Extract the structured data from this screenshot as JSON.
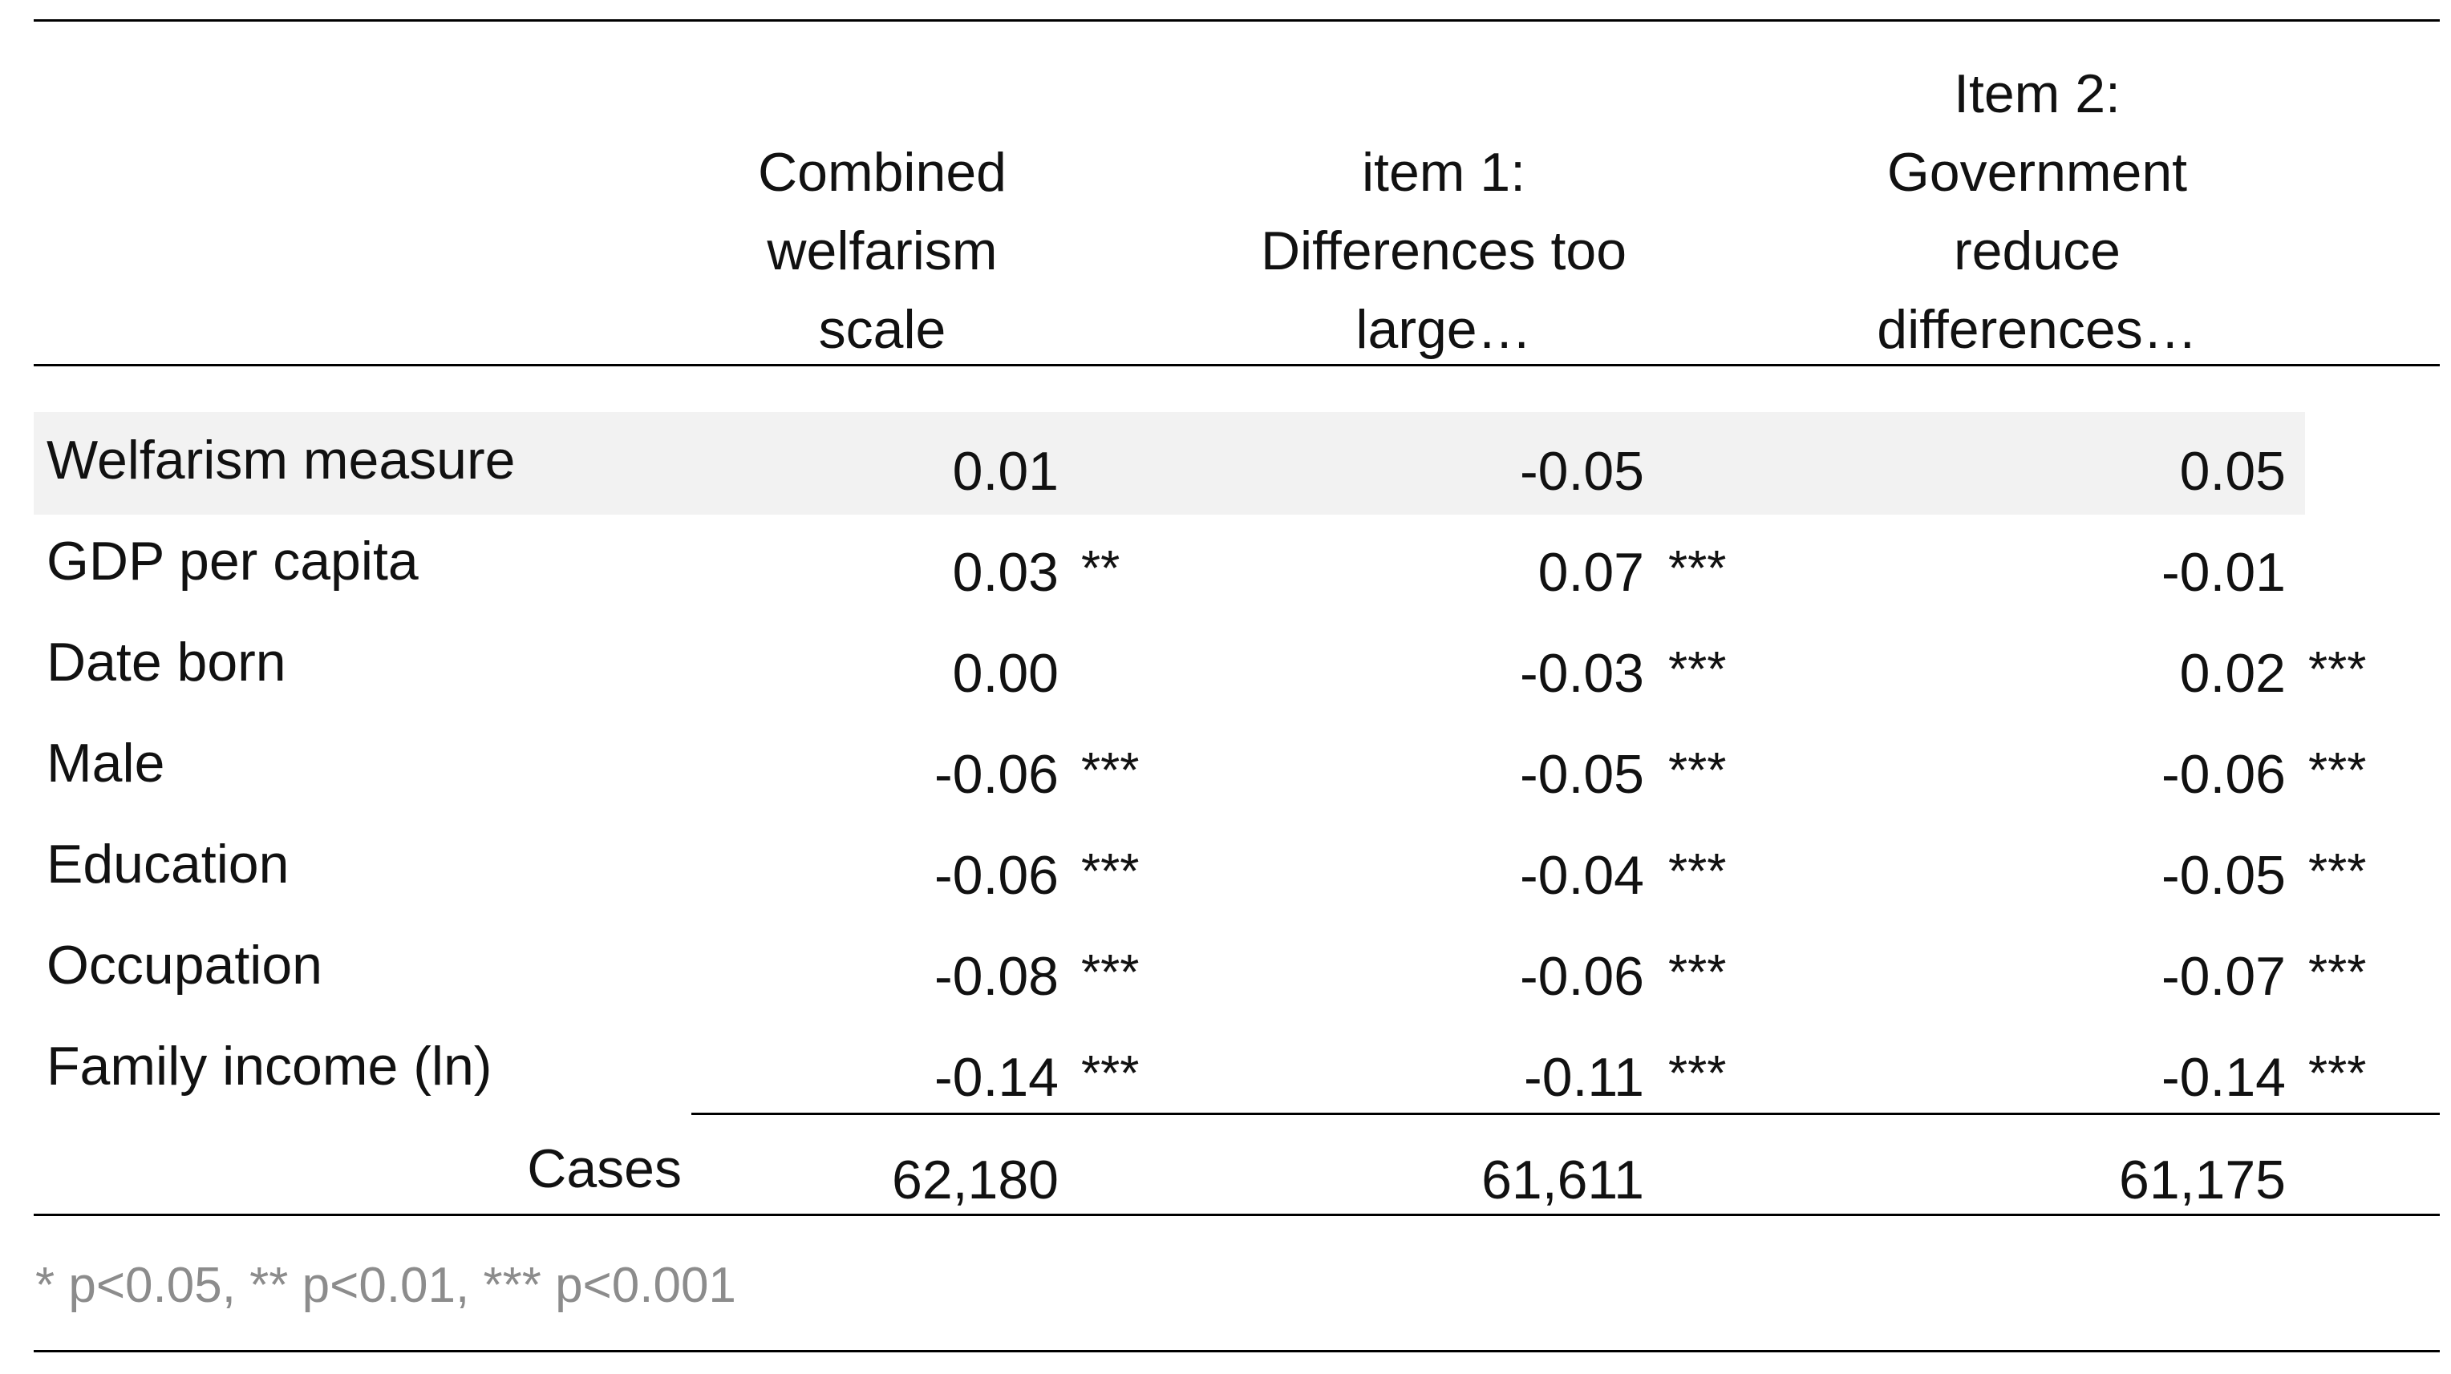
{
  "columns": [
    {
      "header": "Combined\nwelfarism\nscale"
    },
    {
      "header": "item 1:\nDifferences too\nlarge…"
    },
    {
      "header": "Item 2:\nGovernment\nreduce\ndifferences…"
    }
  ],
  "rows": [
    {
      "label": "Welfarism measure",
      "values": [
        "0.01",
        "-0.05",
        "0.05"
      ],
      "sig": [
        "",
        "",
        ""
      ]
    },
    {
      "label": "GDP per capita",
      "values": [
        "0.03",
        "0.07",
        "-0.01"
      ],
      "sig": [
        "**",
        "***",
        ""
      ]
    },
    {
      "label": "Date born",
      "values": [
        "0.00",
        "-0.03",
        "0.02"
      ],
      "sig": [
        "",
        "***",
        "***"
      ]
    },
    {
      "label": "Male",
      "values": [
        "-0.06",
        "-0.05",
        "-0.06"
      ],
      "sig": [
        "***",
        "***",
        "***"
      ]
    },
    {
      "label": "Education",
      "values": [
        "-0.06",
        "-0.04",
        "-0.05"
      ],
      "sig": [
        "***",
        "***",
        "***"
      ]
    },
    {
      "label": "Occupation",
      "values": [
        "-0.08",
        "-0.06",
        "-0.07"
      ],
      "sig": [
        "***",
        "***",
        "***"
      ]
    },
    {
      "label": "Family income (ln)",
      "values": [
        "-0.14",
        "-0.11",
        "-0.14"
      ],
      "sig": [
        "***",
        "***",
        "***"
      ]
    }
  ],
  "cases": {
    "label": "Cases",
    "values": [
      "62,180",
      "61,611",
      "61,175"
    ]
  },
  "footnote": "* p<0.05, ** p<0.01, *** p<0.001"
}
